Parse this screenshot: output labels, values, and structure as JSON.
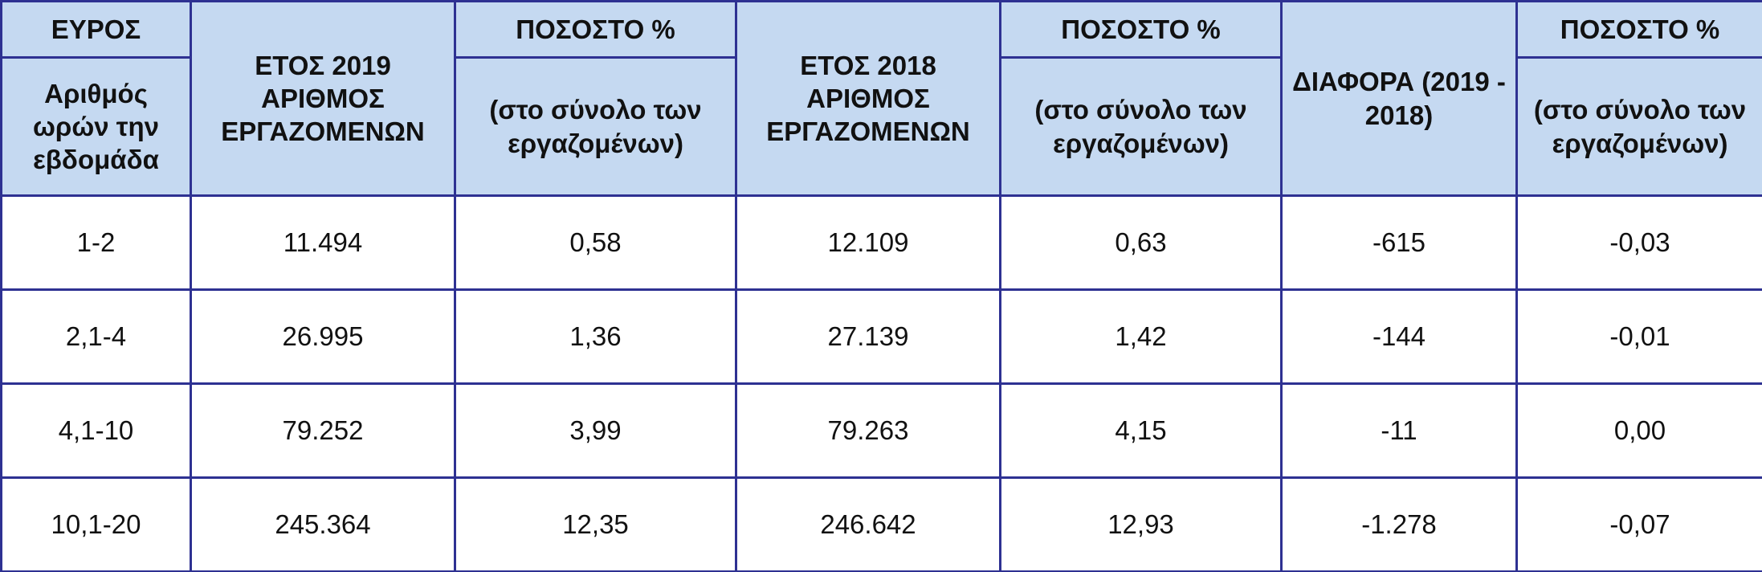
{
  "header": [
    {
      "top": "ΕΥΡΟΣ",
      "bottom": "Αριθμός ωρών την εβδομάδα"
    },
    {
      "label": "ΕΤΟΣ 2019 ΑΡΙΘΜΟΣ ΕΡΓΑΖΟΜΕΝΩΝ"
    },
    {
      "top": "ΠΟΣΟΣΤΟ %",
      "bottom": "(στο σύνολο των εργαζομένων)"
    },
    {
      "label": "ΕΤΟΣ 2018 ΑΡΙΘΜΟΣ ΕΡΓΑΖΟΜΕΝΩΝ"
    },
    {
      "top": "ΠΟΣΟΣΤΟ %",
      "bottom": "(στο σύνολο των εργαζομένων)"
    },
    {
      "label": "ΔΙΑΦΟΡΑ (2019 - 2018)"
    },
    {
      "top": "ΠΟΣΟΣΤΟ %",
      "bottom": "(στο σύνολο των εργαζομένων)"
    }
  ],
  "rows": [
    [
      "1-2",
      "11.494",
      "0,58",
      "12.109",
      "0,63",
      "-615",
      "-0,03"
    ],
    [
      "2,1-4",
      "26.995",
      "1,36",
      "27.139",
      "1,42",
      "-144",
      "-0,01"
    ],
    [
      "4,1-10",
      "79.252",
      "3,99",
      "79.263",
      "4,15",
      "-11",
      "0,00"
    ],
    [
      "10,1-20",
      "245.364",
      "12,35",
      "246.642",
      "12,93",
      "-1.278",
      "-0,07"
    ]
  ]
}
